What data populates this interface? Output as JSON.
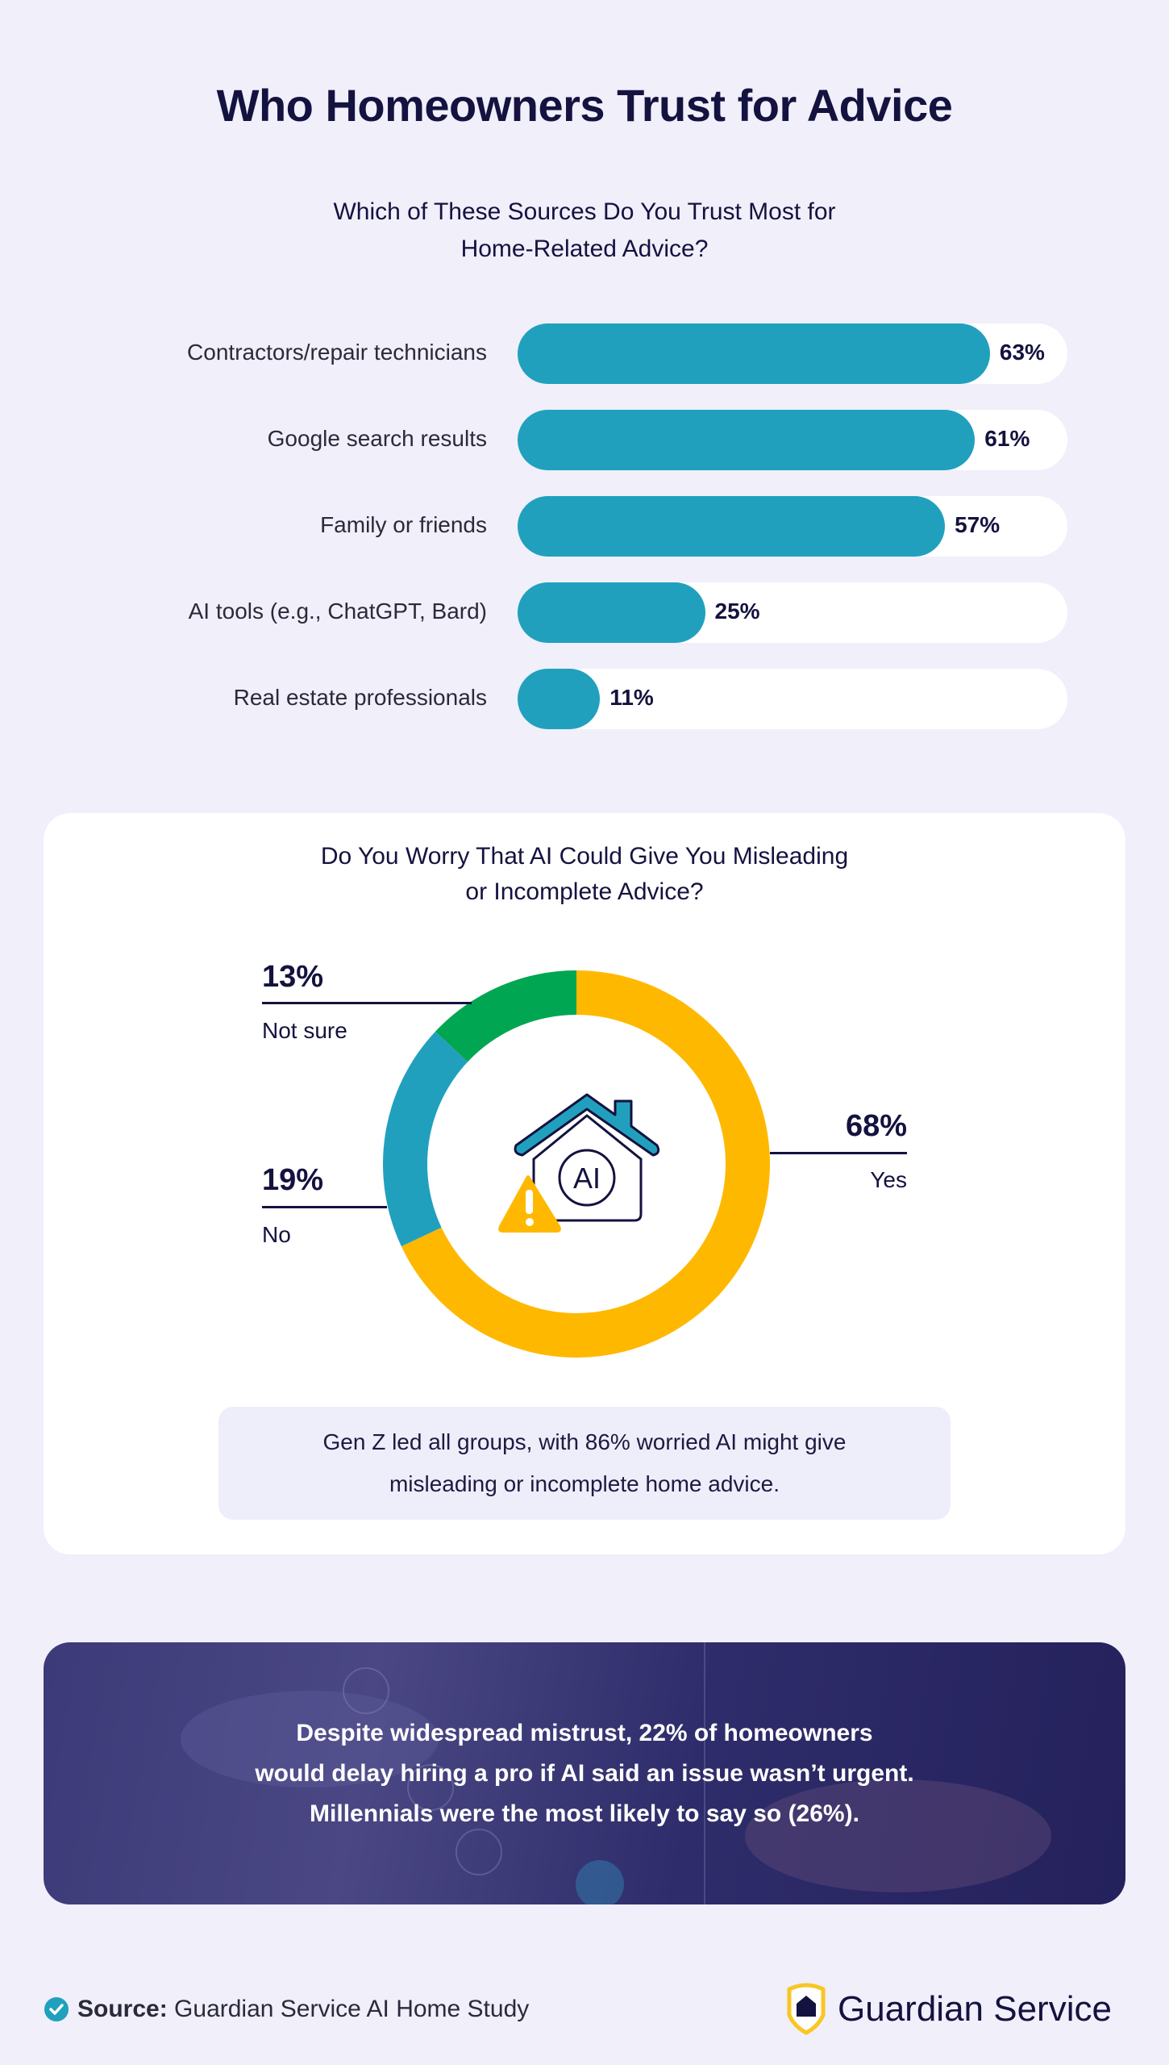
{
  "title": "Who Homeowners Trust for Advice",
  "colors": {
    "bar": "#21A0BE",
    "yes": "#FFB800",
    "no": "#21A0BE",
    "not_sure": "#00A651",
    "text": "#14123F"
  },
  "chart_data": [
    {
      "type": "bar",
      "orientation": "horizontal",
      "title_line1": "Which of These Sources Do You Trust Most for",
      "title_line2": "Home-Related Advice?",
      "categories": [
        "Contractors/repair technicians",
        "Google search results",
        "Family or friends",
        "AI tools (e.g., ChatGPT, Bard)",
        "Real estate professionals"
      ],
      "values": [
        63,
        61,
        57,
        25,
        11
      ],
      "labels": [
        "63%",
        "61%",
        "57%",
        "25%",
        "11%"
      ],
      "unit": "%",
      "grid": false
    },
    {
      "type": "pie",
      "donut": true,
      "title_line1": "Do You Worry That AI Could Give You Misleading",
      "title_line2": "or Incomplete Advice?",
      "slices": [
        {
          "name": "Yes",
          "value": 68,
          "label": "68%",
          "color": "#FFB800"
        },
        {
          "name": "No",
          "value": 19,
          "label": "19%",
          "color": "#21A0BE"
        },
        {
          "name": "Not sure",
          "value": 13,
          "label": "13%",
          "color": "#00A651"
        }
      ],
      "center_icon": "house-ai-warning-icon",
      "center_icon_text": "AI"
    }
  ],
  "note": {
    "line1": "Gen Z led all groups, with 86% worried AI might give",
    "line2": "misleading or incomplete home advice."
  },
  "banner": {
    "line1": "Despite widespread mistrust, 22% of homeowners",
    "line2": "would delay hiring a pro if AI said an issue wasn’t urgent.",
    "line3": "Millennials were the most likely to say so (26%)."
  },
  "footer": {
    "source_label": "Source:",
    "source_text": "Guardian Service AI Home Study",
    "source_icon": "check-circle-icon",
    "brand": "Guardian Service",
    "brand_icon": "shield-house-icon"
  }
}
